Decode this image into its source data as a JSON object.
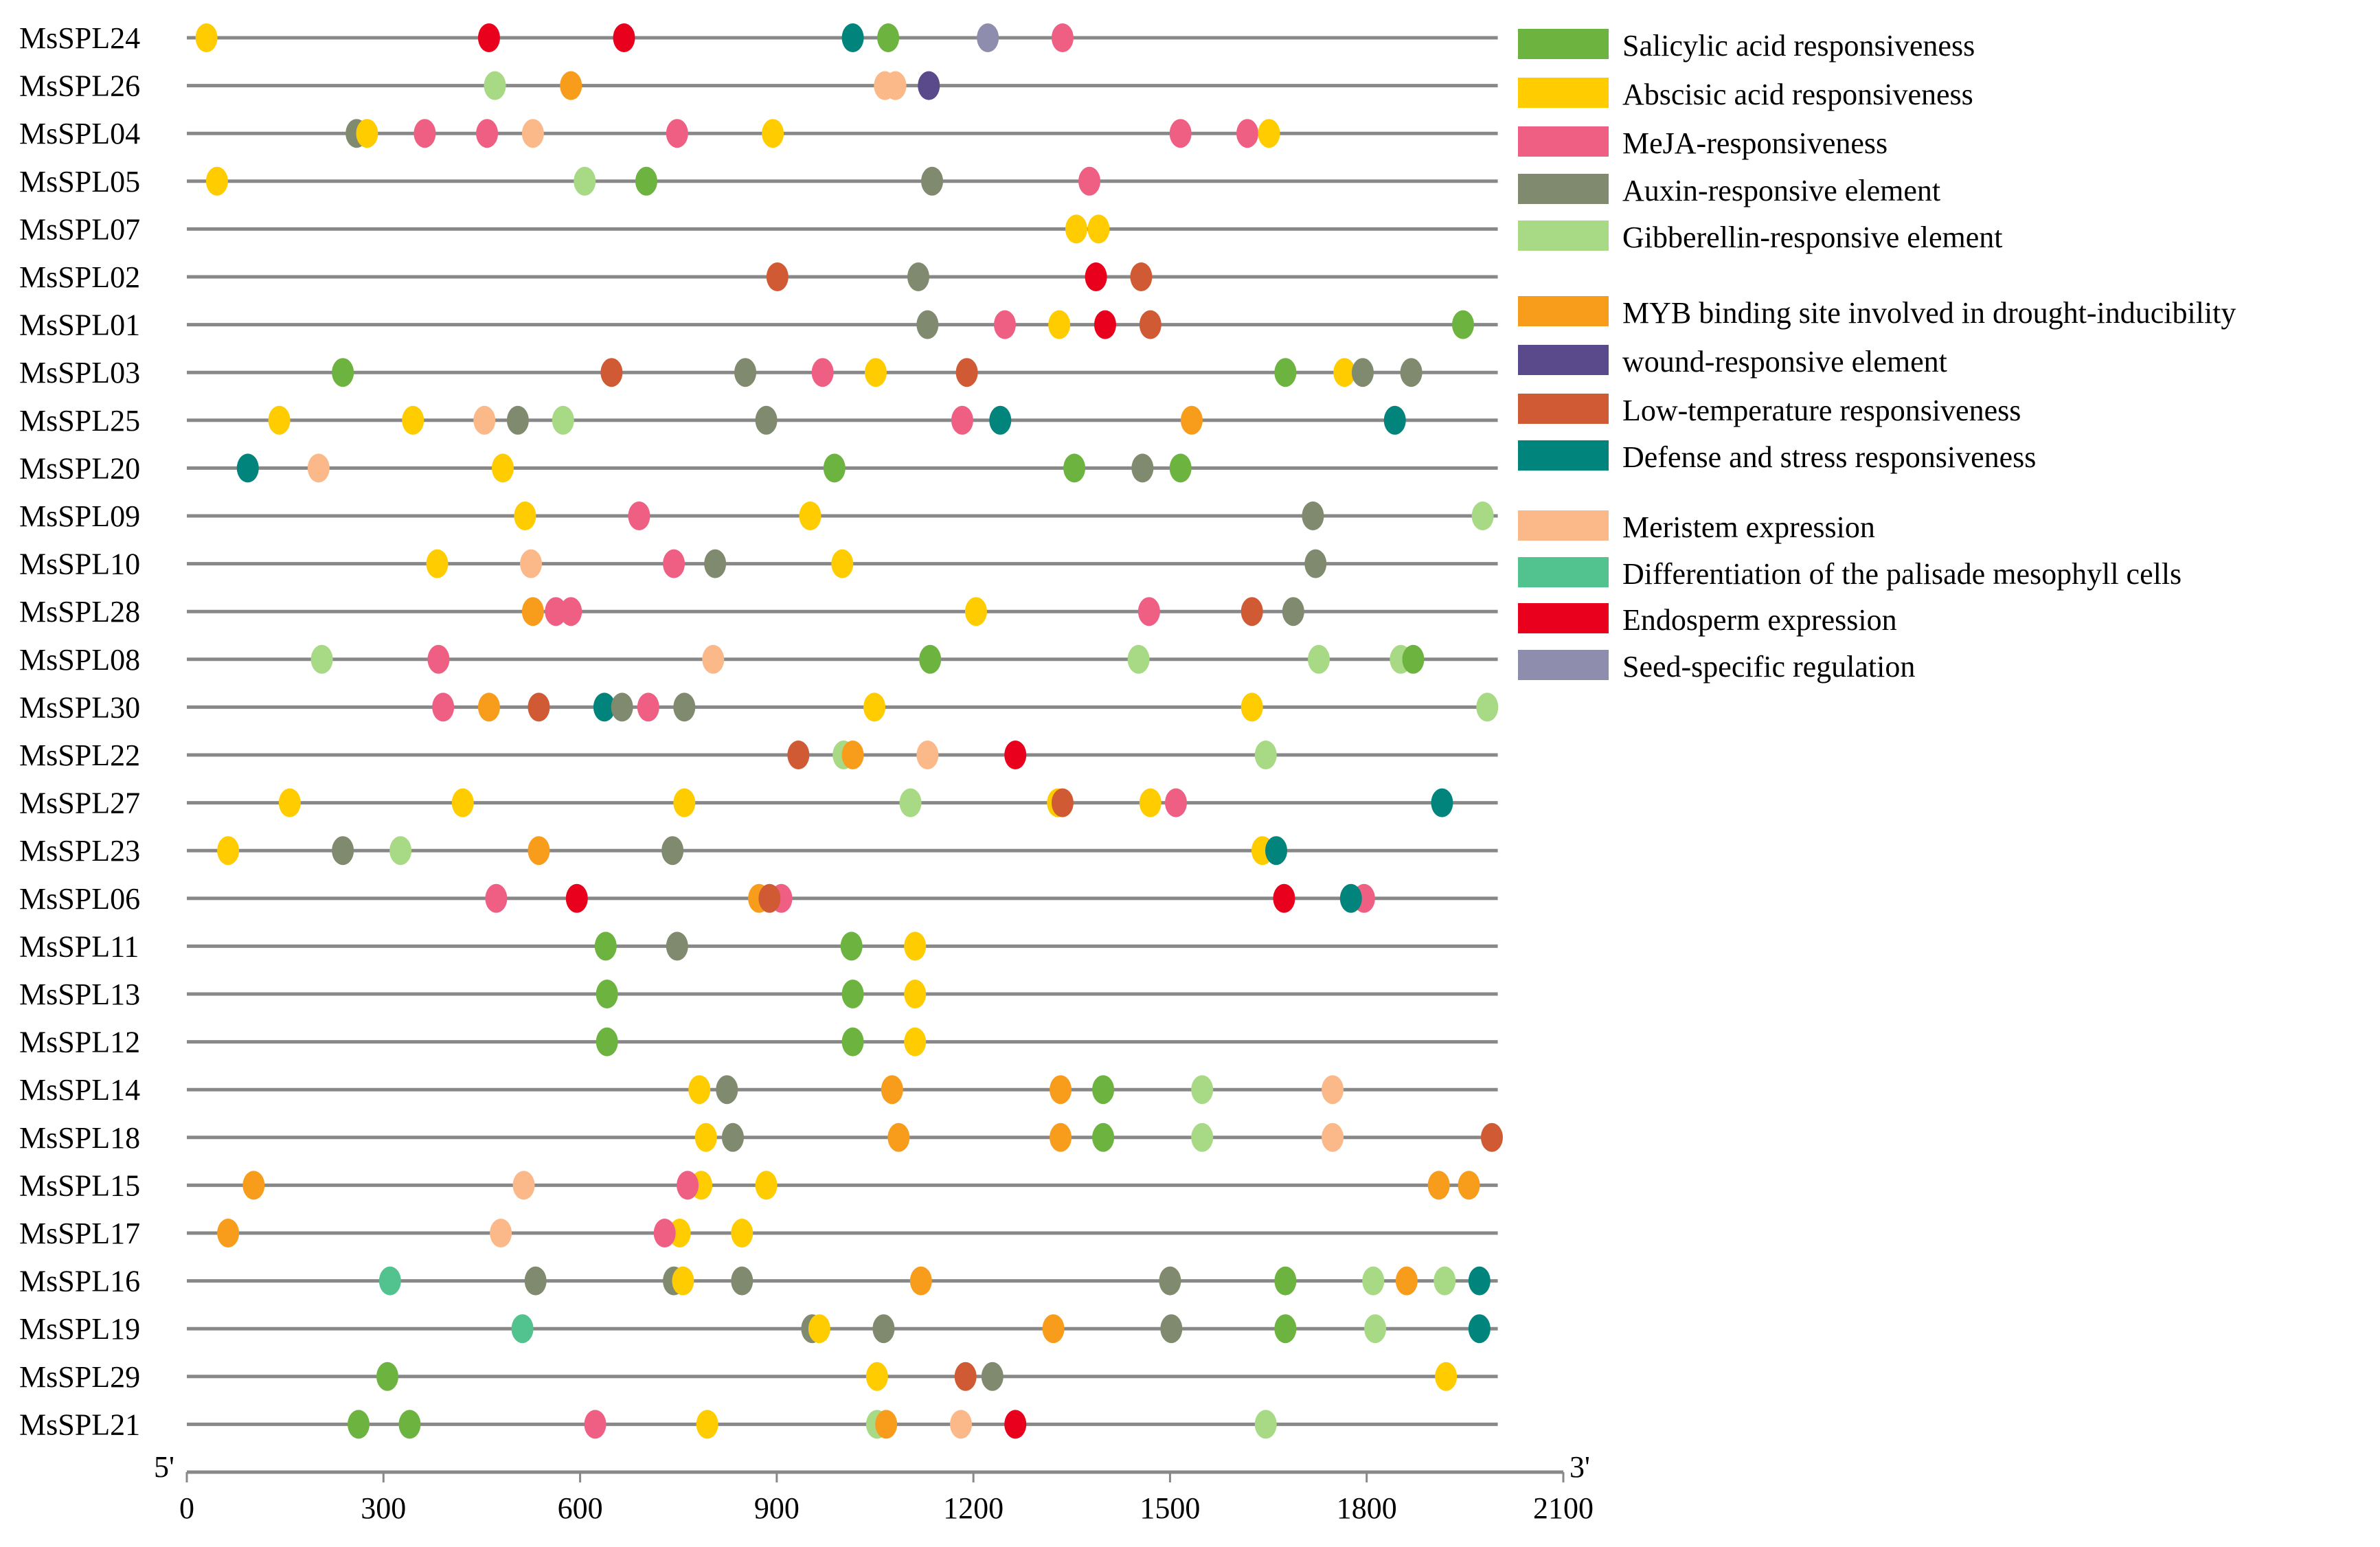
{
  "chart_data": {
    "type": "scatter",
    "title": "",
    "xlabel": "",
    "x_start_label": "5'",
    "x_end_label": "3'",
    "xlim": [
      0,
      2100
    ],
    "gene_length": 2000,
    "xticks": [
      0,
      300,
      600,
      900,
      1200,
      1500,
      1800,
      2100
    ],
    "legend_position": "right",
    "categories": {
      "SA": {
        "label": "Salicylic acid responsiveness",
        "color": "#6db33f"
      },
      "ABA": {
        "label": "Abscisic acid responsiveness",
        "color": "#ffcc00"
      },
      "MEJA": {
        "label": "MeJA-responsiveness",
        "color": "#ef5f84"
      },
      "AUX": {
        "label": "Auxin-responsive element",
        "color": "#808a6f"
      },
      "GA": {
        "label": "Gibberellin-responsive element",
        "color": "#a8d985"
      },
      "MYB": {
        "label": "MYB binding site involved in drought-inducibility",
        "color": "#f89c1c"
      },
      "WOUND": {
        "label": "wound-responsive element",
        "color": "#5b4a8b"
      },
      "LTR": {
        "label": "Low-temperature responsiveness",
        "color": "#d05a33"
      },
      "DEF": {
        "label": "Defense and stress responsiveness",
        "color": "#00847c"
      },
      "MER": {
        "label": "Meristem expression",
        "color": "#fbb98a"
      },
      "PAL": {
        "label": "Differentiation of the palisade mesophyll cells",
        "color": "#52c28f"
      },
      "ENDO": {
        "label": "Endosperm expression",
        "color": "#e8001c"
      },
      "SEED": {
        "label": "Seed-specific regulation",
        "color": "#8f8dae"
      }
    },
    "legend_order": [
      [
        "SA",
        "ABA",
        "MEJA",
        "AUX",
        "GA"
      ],
      [
        "MYB",
        "WOUND",
        "LTR",
        "DEF"
      ],
      [
        "MER",
        "PAL",
        "ENDO",
        "SEED"
      ]
    ],
    "series": [
      {
        "name": "MsSPL24",
        "elements": [
          [
            30,
            "ABA"
          ],
          [
            461,
            "ENDO"
          ],
          [
            667,
            "ENDO"
          ],
          [
            1016,
            "DEF"
          ],
          [
            1070,
            "SA"
          ],
          [
            1222,
            "SEED"
          ],
          [
            1336,
            "MEJA"
          ]
        ]
      },
      {
        "name": "MsSPL26",
        "elements": [
          [
            470,
            "GA"
          ],
          [
            586,
            "MYB"
          ],
          [
            1065,
            "MER"
          ],
          [
            1081,
            "MER"
          ],
          [
            1132,
            "WOUND"
          ]
        ]
      },
      {
        "name": "MsSPL04",
        "elements": [
          [
            259,
            "AUX"
          ],
          [
            275,
            "ABA"
          ],
          [
            363,
            "MEJA"
          ],
          [
            458,
            "MEJA"
          ],
          [
            528,
            "MER"
          ],
          [
            748,
            "MEJA"
          ],
          [
            894,
            "ABA"
          ],
          [
            1516,
            "MEJA"
          ],
          [
            1618,
            "MEJA"
          ],
          [
            1651,
            "ABA"
          ]
        ]
      },
      {
        "name": "MsSPL05",
        "elements": [
          [
            46,
            "ABA"
          ],
          [
            607,
            "GA"
          ],
          [
            701,
            "SA"
          ],
          [
            1137,
            "AUX"
          ],
          [
            1377,
            "MEJA"
          ]
        ]
      },
      {
        "name": "MsSPL07",
        "elements": [
          [
            1357,
            "ABA"
          ],
          [
            1391,
            "ABA"
          ]
        ]
      },
      {
        "name": "MsSPL02",
        "elements": [
          [
            901,
            "LTR"
          ],
          [
            1116,
            "AUX"
          ],
          [
            1387,
            "ENDO"
          ],
          [
            1456,
            "LTR"
          ]
        ]
      },
      {
        "name": "MsSPL01",
        "elements": [
          [
            1130,
            "AUX"
          ],
          [
            1248,
            "MEJA"
          ],
          [
            1331,
            "ABA"
          ],
          [
            1401,
            "ENDO"
          ],
          [
            1470,
            "LTR"
          ],
          [
            1947,
            "SA"
          ]
        ]
      },
      {
        "name": "MsSPL03",
        "elements": [
          [
            238,
            "SA"
          ],
          [
            648,
            "LTR"
          ],
          [
            852,
            "AUX"
          ],
          [
            970,
            "MEJA"
          ],
          [
            1051,
            "ABA"
          ],
          [
            1190,
            "LTR"
          ],
          [
            1676,
            "SA"
          ],
          [
            1766,
            "ABA"
          ],
          [
            1794,
            "AUX"
          ],
          [
            1868,
            "AUX"
          ]
        ]
      },
      {
        "name": "MsSPL25",
        "elements": [
          [
            141,
            "ABA"
          ],
          [
            345,
            "ABA"
          ],
          [
            454,
            "MER"
          ],
          [
            505,
            "AUX"
          ],
          [
            574,
            "GA"
          ],
          [
            884,
            "AUX"
          ],
          [
            1183,
            "MEJA"
          ],
          [
            1241,
            "DEF"
          ],
          [
            1533,
            "MYB"
          ],
          [
            1843,
            "DEF"
          ]
        ]
      },
      {
        "name": "MsSPL20",
        "elements": [
          [
            93,
            "DEF"
          ],
          [
            201,
            "MER"
          ],
          [
            482,
            "ABA"
          ],
          [
            988,
            "SA"
          ],
          [
            1354,
            "SA"
          ],
          [
            1458,
            "AUX"
          ],
          [
            1516,
            "SA"
          ]
        ]
      },
      {
        "name": "MsSPL09",
        "elements": [
          [
            516,
            "ABA"
          ],
          [
            690,
            "MEJA"
          ],
          [
            951,
            "ABA"
          ],
          [
            1718,
            "AUX"
          ],
          [
            1977,
            "GA"
          ]
        ]
      },
      {
        "name": "MsSPL10",
        "elements": [
          [
            382,
            "ABA"
          ],
          [
            525,
            "MER"
          ],
          [
            743,
            "MEJA"
          ],
          [
            806,
            "AUX"
          ],
          [
            1000,
            "ABA"
          ],
          [
            1722,
            "AUX"
          ]
        ]
      },
      {
        "name": "MsSPL28",
        "elements": [
          [
            528,
            "MYB"
          ],
          [
            563,
            "MEJA"
          ],
          [
            586,
            "MEJA"
          ],
          [
            1204,
            "ABA"
          ],
          [
            1468,
            "MEJA"
          ],
          [
            1625,
            "LTR"
          ],
          [
            1688,
            "AUX"
          ]
        ]
      },
      {
        "name": "MsSPL08",
        "elements": [
          [
            206,
            "GA"
          ],
          [
            384,
            "MEJA"
          ],
          [
            803,
            "MER"
          ],
          [
            1134,
            "SA"
          ],
          [
            1452,
            "GA"
          ],
          [
            1727,
            "GA"
          ],
          [
            1852,
            "GA"
          ],
          [
            1871,
            "SA"
          ]
        ]
      },
      {
        "name": "MsSPL30",
        "elements": [
          [
            391,
            "MEJA"
          ],
          [
            461,
            "MYB"
          ],
          [
            537,
            "LTR"
          ],
          [
            637,
            "DEF"
          ],
          [
            664,
            "AUX"
          ],
          [
            704,
            "MEJA"
          ],
          [
            759,
            "AUX"
          ],
          [
            1049,
            "ABA"
          ],
          [
            1625,
            "ABA"
          ],
          [
            1984,
            "GA"
          ]
        ]
      },
      {
        "name": "MsSPL22",
        "elements": [
          [
            933,
            "LTR"
          ],
          [
            1002,
            "GA"
          ],
          [
            1016,
            "MYB"
          ],
          [
            1130,
            "MER"
          ],
          [
            1264,
            "ENDO"
          ],
          [
            1646,
            "GA"
          ]
        ]
      },
      {
        "name": "MsSPL27",
        "elements": [
          [
            157,
            "ABA"
          ],
          [
            421,
            "ABA"
          ],
          [
            759,
            "ABA"
          ],
          [
            1104,
            "GA"
          ],
          [
            1329,
            "ABA"
          ],
          [
            1336,
            "LTR"
          ],
          [
            1470,
            "ABA"
          ],
          [
            1509,
            "MEJA"
          ],
          [
            1915,
            "DEF"
          ]
        ]
      },
      {
        "name": "MsSPL23",
        "elements": [
          [
            63,
            "ABA"
          ],
          [
            238,
            "AUX"
          ],
          [
            326,
            "GA"
          ],
          [
            537,
            "MYB"
          ],
          [
            741,
            "AUX"
          ],
          [
            1641,
            "ABA"
          ],
          [
            1662,
            "DEF"
          ]
        ]
      },
      {
        "name": "MsSPL06",
        "elements": [
          [
            472,
            "MEJA"
          ],
          [
            595,
            "ENDO"
          ],
          [
            873,
            "MYB"
          ],
          [
            907,
            "MEJA"
          ],
          [
            889,
            "LTR"
          ],
          [
            1674,
            "ENDO"
          ],
          [
            1796,
            "MEJA"
          ],
          [
            1776,
            "DEF"
          ]
        ]
      },
      {
        "name": "MsSPL11",
        "elements": [
          [
            639,
            "SA"
          ],
          [
            748,
            "AUX"
          ],
          [
            1014,
            "SA"
          ],
          [
            1111,
            "ABA"
          ]
        ]
      },
      {
        "name": "MsSPL13",
        "elements": [
          [
            641,
            "SA"
          ],
          [
            1016,
            "SA"
          ],
          [
            1111,
            "ABA"
          ]
        ]
      },
      {
        "name": "MsSPL12",
        "elements": [
          [
            641,
            "SA"
          ],
          [
            1016,
            "SA"
          ],
          [
            1111,
            "ABA"
          ]
        ]
      },
      {
        "name": "MsSPL14",
        "elements": [
          [
            782,
            "ABA"
          ],
          [
            824,
            "AUX"
          ],
          [
            1076,
            "MYB"
          ],
          [
            1333,
            "MYB"
          ],
          [
            1398,
            "SA"
          ],
          [
            1549,
            "GA"
          ],
          [
            1748,
            "MER"
          ]
        ]
      },
      {
        "name": "MsSPL18",
        "elements": [
          [
            792,
            "ABA"
          ],
          [
            833,
            "AUX"
          ],
          [
            1086,
            "MYB"
          ],
          [
            1333,
            "MYB"
          ],
          [
            1398,
            "SA"
          ],
          [
            1549,
            "GA"
          ],
          [
            1748,
            "MER"
          ],
          [
            1991,
            "LTR"
          ]
        ]
      },
      {
        "name": "MsSPL15",
        "elements": [
          [
            102,
            "MYB"
          ],
          [
            514,
            "MER"
          ],
          [
            785,
            "ABA"
          ],
          [
            764,
            "MEJA"
          ],
          [
            884,
            "ABA"
          ],
          [
            1910,
            "MYB"
          ],
          [
            1956,
            "MYB"
          ]
        ]
      },
      {
        "name": "MsSPL17",
        "elements": [
          [
            63,
            "MYB"
          ],
          [
            479,
            "MER"
          ],
          [
            752,
            "ABA"
          ],
          [
            729,
            "MEJA"
          ],
          [
            847,
            "ABA"
          ]
        ]
      },
      {
        "name": "MsSPL16",
        "elements": [
          [
            310,
            "PAL"
          ],
          [
            532,
            "AUX"
          ],
          [
            743,
            "AUX"
          ],
          [
            757,
            "ABA"
          ],
          [
            847,
            "AUX"
          ],
          [
            1120,
            "MYB"
          ],
          [
            1500,
            "AUX"
          ],
          [
            1676,
            "SA"
          ],
          [
            1810,
            "GA"
          ],
          [
            1861,
            "MYB"
          ],
          [
            1919,
            "GA"
          ],
          [
            1972,
            "DEF"
          ]
        ]
      },
      {
        "name": "MsSPL19",
        "elements": [
          [
            512,
            "PAL"
          ],
          [
            954,
            "AUX"
          ],
          [
            965,
            "ABA"
          ],
          [
            1063,
            "AUX"
          ],
          [
            1322,
            "MYB"
          ],
          [
            1502,
            "AUX"
          ],
          [
            1676,
            "SA"
          ],
          [
            1813,
            "GA"
          ],
          [
            1972,
            "DEF"
          ]
        ]
      },
      {
        "name": "MsSPL29",
        "elements": [
          [
            306,
            "SA"
          ],
          [
            1053,
            "ABA"
          ],
          [
            1188,
            "LTR"
          ],
          [
            1229,
            "AUX"
          ],
          [
            1921,
            "ABA"
          ]
        ]
      },
      {
        "name": "MsSPL21",
        "elements": [
          [
            262,
            "SA"
          ],
          [
            340,
            "SA"
          ],
          [
            623,
            "MEJA"
          ],
          [
            794,
            "ABA"
          ],
          [
            1053,
            "GA"
          ],
          [
            1067,
            "MYB"
          ],
          [
            1181,
            "MER"
          ],
          [
            1264,
            "ENDO"
          ],
          [
            1646,
            "GA"
          ]
        ]
      }
    ]
  }
}
